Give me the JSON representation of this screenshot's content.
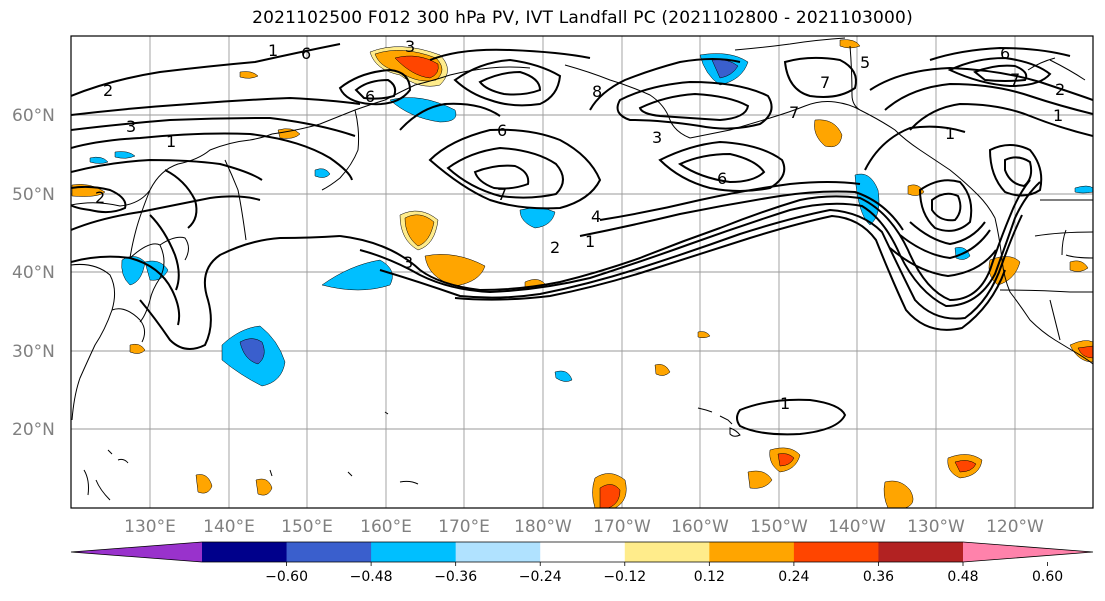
{
  "title": "2021102500 F012 300 hPa PV, IVT Landfall PC (2021102800 - 2021103000)",
  "lat_labels": [
    "60°N",
    "50°N",
    "40°N",
    "30°N",
    "20°N"
  ],
  "lon_labels": [
    "130°E",
    "140°E",
    "150°E",
    "160°E",
    "170°E",
    "180°W",
    "170°W",
    "160°W",
    "150°W",
    "140°W",
    "130°W",
    "120°W"
  ],
  "contour_labels": [
    "1",
    "6",
    "3",
    "2",
    "3",
    "1",
    "2",
    "8",
    "6",
    "3",
    "6",
    "7",
    "5",
    "7",
    "6",
    "7",
    "4",
    "2",
    "1",
    "3",
    "1",
    "6",
    "7",
    "1",
    "2",
    "1"
  ],
  "colorbar": {
    "colors": [
      "#9932cc",
      "#00008b",
      "#3a5fcd",
      "#00bfff",
      "#b0e2ff",
      "#ffffff",
      "#ffec8b",
      "#ffa500",
      "#ff4500",
      "#b22222",
      "#ff82ab"
    ],
    "ticks": [
      "−0.60",
      "−0.48",
      "−0.36",
      "−0.24",
      "−0.12",
      "0.12",
      "0.24",
      "0.36",
      "0.48",
      "0.60"
    ]
  }
}
